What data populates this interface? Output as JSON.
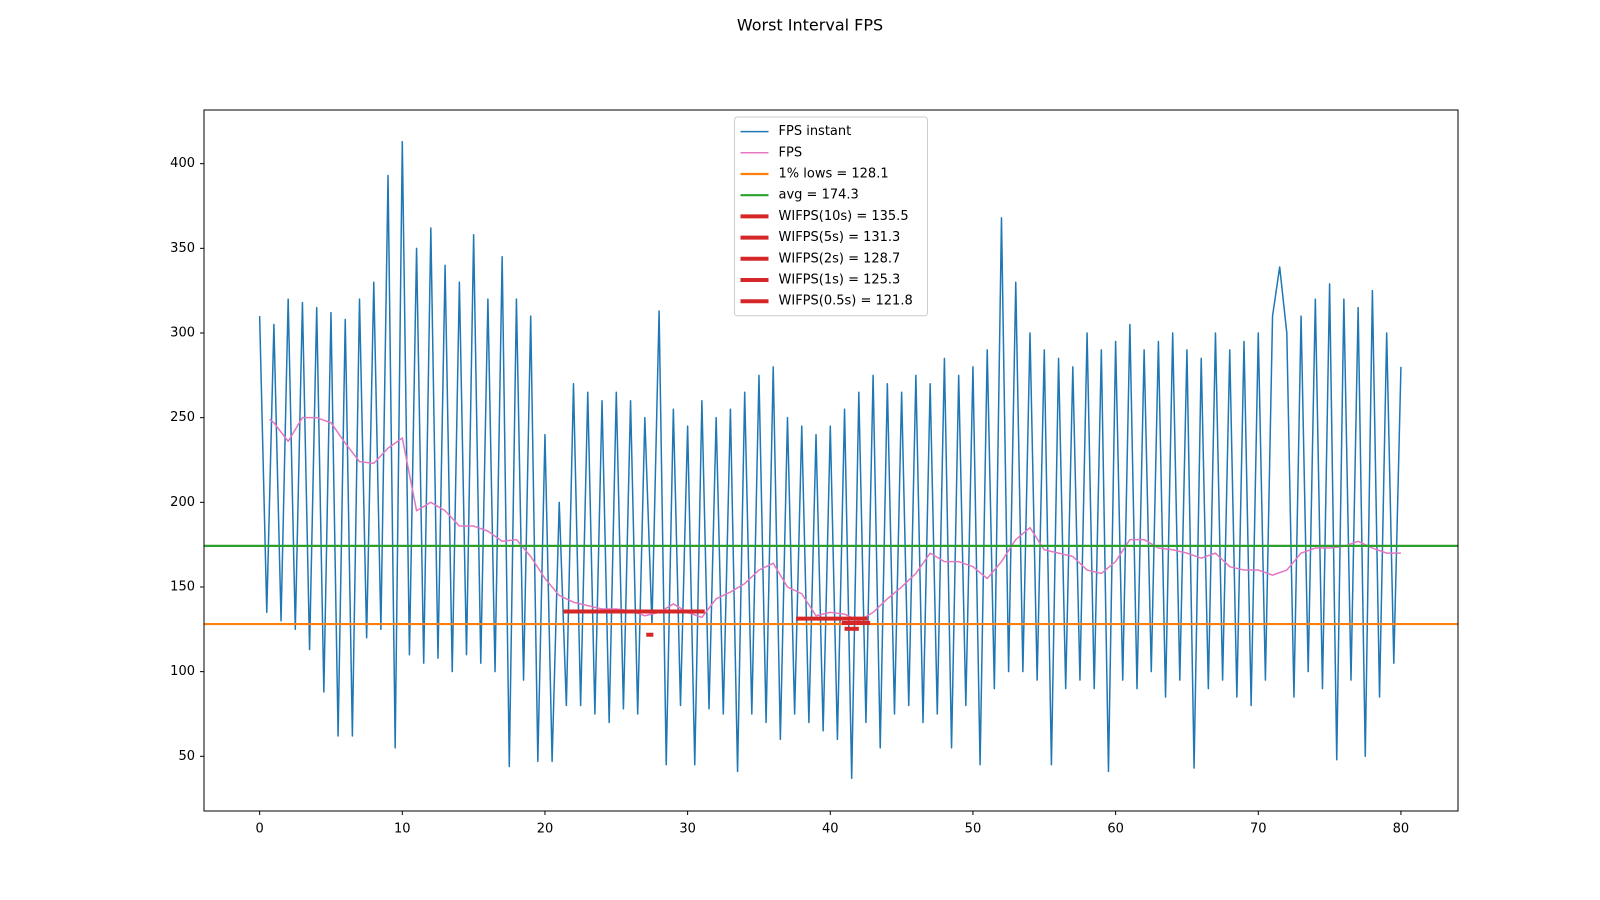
{
  "chart_data": {
    "type": "line",
    "title": "Worst Interval FPS",
    "xlim": [
      -3.9,
      84.0
    ],
    "ylim": [
      17.7,
      431.7
    ],
    "xticks": [
      0,
      10,
      20,
      30,
      40,
      50,
      60,
      70,
      80
    ],
    "yticks": [
      50,
      100,
      150,
      200,
      250,
      300,
      350,
      400
    ],
    "legend": "upper center",
    "series": [
      {
        "name": "FPS instant",
        "color": "#1f77b4",
        "x": [
          0,
          0.5,
          1,
          1.5,
          2,
          2.5,
          3,
          3.5,
          4,
          4.5,
          5,
          5.5,
          6,
          6.5,
          7,
          7.5,
          8,
          8.5,
          9,
          9.5,
          10,
          10.5,
          11,
          11.5,
          12,
          12.5,
          13,
          13.5,
          14,
          14.5,
          15,
          15.5,
          16,
          16.5,
          17,
          17.5,
          18,
          18.5,
          19,
          19.5,
          20,
          20.5,
          21,
          21.5,
          22,
          22.5,
          23,
          23.5,
          24,
          24.5,
          25,
          25.5,
          26,
          26.5,
          27,
          27.5,
          28,
          28.5,
          29,
          29.5,
          30,
          30.5,
          31,
          31.5,
          32,
          32.5,
          33,
          33.5,
          34,
          34.5,
          35,
          35.5,
          36,
          36.5,
          37,
          37.5,
          38,
          38.5,
          39,
          39.5,
          40,
          40.5,
          41,
          41.5,
          42,
          42.5,
          43,
          43.5,
          44,
          44.5,
          45,
          45.5,
          46,
          46.5,
          47,
          47.5,
          48,
          48.5,
          49,
          49.5,
          50,
          50.5,
          51,
          51.5,
          52,
          52.5,
          53,
          53.5,
          54,
          54.5,
          55,
          55.5,
          56,
          56.5,
          57,
          57.5,
          58,
          58.5,
          59,
          59.5,
          60,
          60.5,
          61,
          61.5,
          62,
          62.5,
          63,
          63.5,
          64,
          64.5,
          65,
          65.5,
          66,
          66.5,
          67,
          67.5,
          68,
          68.5,
          69,
          69.5,
          70,
          70.5,
          71,
          71.5,
          72,
          72.5,
          73,
          73.5,
          74,
          74.5,
          75,
          75.5,
          76,
          76.5,
          77,
          77.5,
          78,
          78.5,
          79,
          79.5,
          80
        ],
        "values": [
          310,
          135,
          305,
          130,
          320,
          125,
          318,
          113,
          315,
          88,
          312,
          62,
          308,
          62,
          320,
          120,
          330,
          125,
          393,
          55,
          413,
          110,
          350,
          105,
          362,
          108,
          340,
          100,
          330,
          110,
          358,
          105,
          320,
          100,
          345,
          44,
          320,
          95,
          310,
          47,
          240,
          47,
          200,
          80,
          270,
          80,
          265,
          75,
          260,
          70,
          265,
          78,
          260,
          75,
          250,
          128,
          313,
          45,
          255,
          80,
          245,
          45,
          260,
          78,
          250,
          75,
          255,
          41,
          265,
          75,
          275,
          70,
          280,
          60,
          250,
          75,
          245,
          70,
          240,
          65,
          245,
          60,
          255,
          37,
          265,
          70,
          275,
          55,
          270,
          75,
          265,
          80,
          275,
          70,
          270,
          75,
          285,
          55,
          275,
          80,
          280,
          45,
          290,
          90,
          368,
          100,
          330,
          100,
          300,
          95,
          290,
          45,
          285,
          90,
          280,
          95,
          300,
          90,
          290,
          41,
          295,
          95,
          305,
          90,
          290,
          100,
          295,
          85,
          300,
          95,
          290,
          43,
          285,
          90,
          300,
          95,
          290,
          85,
          295,
          80,
          300,
          95,
          310,
          339,
          300,
          85,
          310,
          100,
          320,
          90,
          329,
          48,
          320,
          95,
          315,
          50,
          325,
          85,
          300,
          105,
          280
        ]
      },
      {
        "name": "FPS",
        "color": "#e377c2",
        "x": [
          0.7,
          1,
          2,
          3,
          4,
          5,
          6,
          7,
          8,
          9,
          10,
          11,
          12,
          13,
          14,
          15,
          16,
          17,
          18,
          19,
          20,
          21,
          22,
          23,
          24,
          25,
          26,
          27,
          28,
          29,
          30,
          31,
          32,
          33,
          34,
          35,
          36,
          37,
          38,
          39,
          40,
          41,
          42,
          43,
          44,
          45,
          46,
          47,
          48,
          49,
          50,
          51,
          52,
          53,
          54,
          55,
          56,
          57,
          58,
          59,
          60,
          61,
          62,
          63,
          64,
          65,
          66,
          67,
          68,
          69,
          70,
          71,
          72,
          73,
          74,
          75,
          76,
          77,
          78,
          79,
          80
        ],
        "values": [
          249,
          247,
          236,
          250,
          250,
          247,
          235,
          224,
          223,
          232,
          238,
          195,
          200,
          195,
          186,
          186,
          183,
          177,
          178,
          168,
          155,
          145,
          141,
          139,
          137,
          137,
          136,
          133,
          135,
          140,
          135,
          132,
          143,
          147,
          152,
          160,
          164,
          150,
          146,
          133,
          135,
          134,
          130,
          135,
          143,
          150,
          158,
          170,
          165,
          165,
          162,
          155,
          165,
          178,
          185,
          172,
          170,
          168,
          160,
          158,
          165,
          178,
          178,
          173,
          172,
          170,
          167,
          170,
          162,
          160,
          160,
          157,
          160,
          170,
          173,
          173,
          174,
          177,
          173,
          170,
          170
        ]
      }
    ],
    "hlines": [
      {
        "name": "1% lows = 128.1",
        "color": "#ff7f0e",
        "value": 128.1
      },
      {
        "name": "avg = 174.3",
        "color": "#2ca02c",
        "value": 174.3
      }
    ],
    "segments": [
      {
        "name": "WIFPS(10s) = 135.5",
        "color": "#d62728",
        "value": 135.5,
        "x": [
          21.3,
          31.2
        ]
      },
      {
        "name": "WIFPS(5s) = 131.3",
        "color": "#d62728",
        "value": 131.3,
        "x": [
          37.6,
          42.6
        ]
      },
      {
        "name": "WIFPS(2s) = 128.7",
        "color": "#d62728",
        "value": 128.7,
        "x": [
          40.8,
          42.8
        ]
      },
      {
        "name": "WIFPS(1s) = 125.3",
        "color": "#d62728",
        "value": 125.3,
        "x": [
          41.0,
          42.0
        ]
      },
      {
        "name": "WIFPS(0.5s) = 121.8",
        "color": "#d62728",
        "value": 121.8,
        "x": [
          27.1,
          27.6
        ]
      }
    ]
  }
}
